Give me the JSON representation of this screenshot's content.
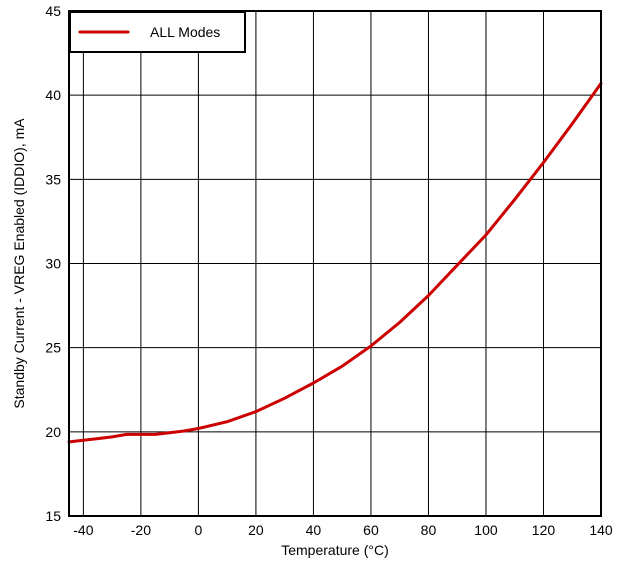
{
  "chart_data": {
    "type": "line",
    "title": "",
    "xlabel": "Temperature (°C)",
    "ylabel": "Standby Current - VREG Enabled (IDDIO), mA",
    "xlim": [
      -45,
      140
    ],
    "ylim": [
      15,
      45
    ],
    "xticks": [
      -40,
      -20,
      0,
      20,
      40,
      60,
      80,
      100,
      120,
      140
    ],
    "yticks": [
      15,
      20,
      25,
      30,
      35,
      40,
      45
    ],
    "grid": true,
    "legend_position": "top-left",
    "series": [
      {
        "name": "ALL Modes",
        "color": "#cc0000",
        "x": [
          -45,
          -40,
          -35,
          -30,
          -25,
          -20,
          -15,
          -10,
          -5,
          0,
          10,
          20,
          30,
          40,
          50,
          60,
          70,
          80,
          90,
          100,
          110,
          120,
          130,
          140
        ],
        "y": [
          19.4,
          19.5,
          19.6,
          19.7,
          19.85,
          19.85,
          19.85,
          19.95,
          20.05,
          20.2,
          20.6,
          21.2,
          22.0,
          22.9,
          23.9,
          25.1,
          26.5,
          28.1,
          29.9,
          31.7,
          33.8,
          36.0,
          38.3,
          40.7
        ]
      }
    ]
  }
}
